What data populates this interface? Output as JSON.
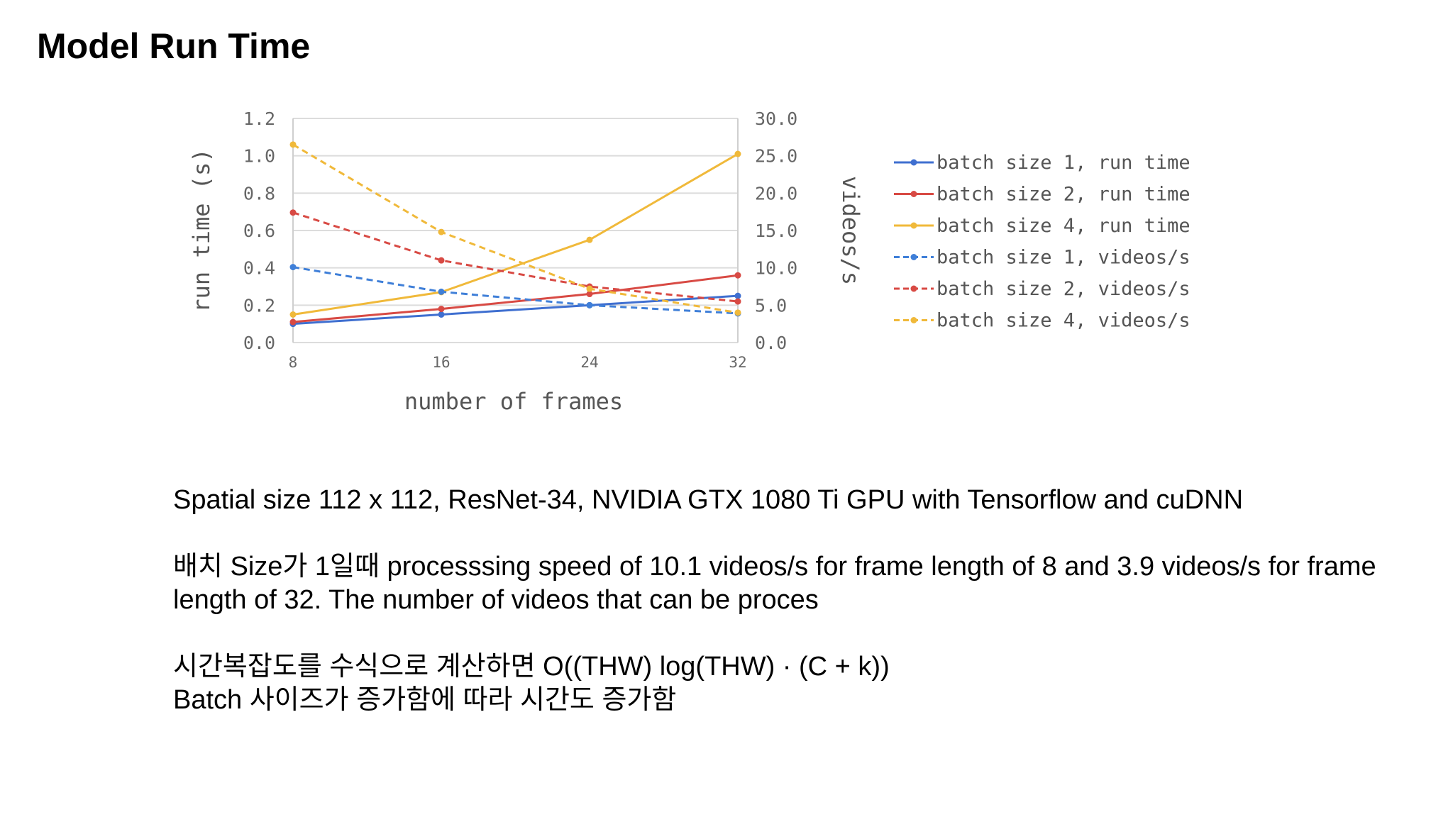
{
  "slide": {
    "title": "Model Run Time",
    "paragraphs": [
      "Spatial size 112 x 112, ResNet-34, NVIDIA GTX 1080 Ti GPU with Tensorflow and cuDNN",
      "배치 Size가 1일때 processsing speed of 10.1 videos/s for frame length of 8 and 3.9 videos/s for frame length of 32. The number of videos that can be proces",
      "시간복잡도를 수식으로 계산하면 O((THW) log(THW) · (C + k))\nBatch 사이즈가 증가함에 따라 시간도 증가함"
    ]
  },
  "chart_data": {
    "type": "line",
    "title": "",
    "xlabel": "number of frames",
    "ylabel_left": "run time (s)",
    "ylabel_right": "videos/s",
    "x": [
      8,
      16,
      24,
      32
    ],
    "x_ticks": [
      "8",
      "16",
      "24",
      "32"
    ],
    "ylim_left": [
      0,
      1.2
    ],
    "yticks_left": [
      "0.0",
      "0.2",
      "0.4",
      "0.6",
      "0.8",
      "1.0",
      "1.2"
    ],
    "ylim_right": [
      0,
      30
    ],
    "yticks_right": [
      "0.0",
      "5.0",
      "10.0",
      "15.0",
      "20.0",
      "25.0",
      "30.0"
    ],
    "grid": true,
    "legend_position": "right",
    "series": [
      {
        "name": "batch size 1, run time",
        "axis": "left",
        "style": "solid",
        "color": "#3f6fd0",
        "values": [
          0.1,
          0.15,
          0.2,
          0.25
        ]
      },
      {
        "name": "batch size 2, run time",
        "axis": "left",
        "style": "solid",
        "color": "#d84a44",
        "values": [
          0.11,
          0.18,
          0.26,
          0.36
        ]
      },
      {
        "name": "batch size 4, run time",
        "axis": "left",
        "style": "solid",
        "color": "#f0b93a",
        "values": [
          0.15,
          0.27,
          0.55,
          1.01
        ]
      },
      {
        "name": "batch size 1, videos/s",
        "axis": "right",
        "style": "dashed",
        "color": "#3f7fd8",
        "values": [
          10.1,
          6.8,
          5.0,
          3.9
        ]
      },
      {
        "name": "batch size 2, videos/s",
        "axis": "right",
        "style": "dashed",
        "color": "#d84a44",
        "values": [
          17.4,
          11.0,
          7.5,
          5.5
        ]
      },
      {
        "name": "batch size 4, videos/s",
        "axis": "right",
        "style": "dashed",
        "color": "#f0b93a",
        "values": [
          26.5,
          14.8,
          7.2,
          4.0
        ]
      }
    ]
  }
}
